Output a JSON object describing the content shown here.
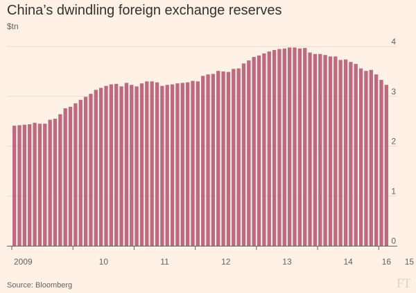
{
  "title": "China’s dwindling foreign exchange reserves",
  "unit_label": "$tn",
  "source": "Source: Bloomberg",
  "logo_text": "FT",
  "colors": {
    "bar": "#bd6a80",
    "grid": "#e9dacd",
    "axis": "#66605c",
    "background": "#fff1e5"
  },
  "chart_data": {
    "type": "bar",
    "title": "China’s dwindling foreign exchange reserves",
    "ylabel": "$tn",
    "ylim": [
      0,
      4
    ],
    "yticks": [
      0,
      1,
      2,
      3,
      4
    ],
    "grid": true,
    "x_start": "2009-01",
    "x_end": "2016-02",
    "x_tick_labels": [
      "2009",
      "10",
      "11",
      "12",
      "13",
      "14",
      "15",
      "16"
    ],
    "series": [
      {
        "values": [
          2.41,
          2.42,
          2.43,
          2.44,
          2.47,
          2.45,
          2.45,
          2.53,
          2.55,
          2.64,
          2.76,
          2.79,
          2.86,
          2.93,
          2.99,
          3.05,
          3.13,
          3.17,
          3.21,
          3.24,
          3.25,
          3.2,
          3.27,
          3.23,
          3.2,
          3.26,
          3.3,
          3.3,
          3.28,
          3.21,
          3.23,
          3.24,
          3.26,
          3.27,
          3.28,
          3.31,
          3.3,
          3.41,
          3.44,
          3.45,
          3.51,
          3.5,
          3.49,
          3.55,
          3.56,
          3.66,
          3.72,
          3.79,
          3.82,
          3.86,
          3.9,
          3.93,
          3.95,
          3.96,
          3.98,
          3.98,
          3.96,
          3.97,
          3.88,
          3.85,
          3.85,
          3.83,
          3.8,
          3.8,
          3.73,
          3.74,
          3.69,
          3.65,
          3.56,
          3.51,
          3.53,
          3.44,
          3.33,
          3.23
        ]
      }
    ]
  }
}
